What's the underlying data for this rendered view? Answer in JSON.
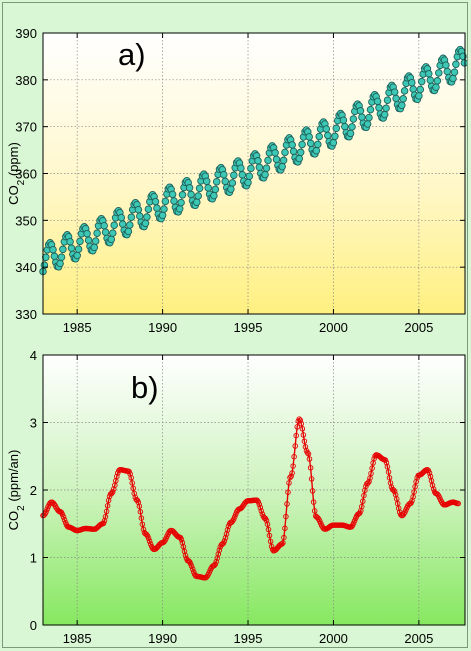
{
  "colors": {
    "page_bg": "#d9f7d4",
    "panel_a_gradient": [
      "#ffffff",
      "#fff7c8",
      "#fff080"
    ],
    "panel_b_gradient": [
      "#ffffff",
      "#c9f2b8",
      "#86e860"
    ],
    "series_a_fill": "#3cc8b4",
    "series_a_edge": "#1f5f5a",
    "series_b_color": "#e60000",
    "grid": "#888888"
  },
  "chart_data": [
    {
      "type": "scatter",
      "panel_label": "a)",
      "ylabel_main": "CO",
      "ylabel_sub": "2",
      "ylabel_rest": " (ppm)",
      "xlim": [
        1983.0,
        2007.7
      ],
      "ylim": [
        330,
        390
      ],
      "xticks": [
        1985,
        1990,
        1995,
        2000,
        2005
      ],
      "yticks": [
        330,
        340,
        350,
        360,
        370,
        380,
        390
      ],
      "grid": true,
      "series": [
        {
          "marker": "circle",
          "x_start": 1983.0,
          "x_end": 2007.7,
          "sampling": "monthly",
          "trend_anchors": {
            "x": [
              1983,
              1990,
              1995,
              2000,
              2005,
              2007.7
            ],
            "y": [
              341.5,
              353.5,
              360.5,
              369.0,
              379.0,
              384.0
            ]
          },
          "seasonal_amplitude_ppm": 3.0
        }
      ]
    },
    {
      "type": "line",
      "panel_label": "b)",
      "ylabel_main": "CO",
      "ylabel_sub": "2",
      "ylabel_rest": " (ppm/an)",
      "xlim": [
        1983.0,
        2007.7
      ],
      "ylim": [
        0,
        4
      ],
      "xticks": [
        1985,
        1990,
        1995,
        2000,
        2005
      ],
      "yticks": [
        0,
        1,
        2,
        3,
        4
      ],
      "grid": true,
      "series": [
        {
          "marker": "circle-line",
          "x": [
            1983.0,
            1983.5,
            1984.0,
            1984.5,
            1985.0,
            1985.5,
            1986.0,
            1986.5,
            1987.0,
            1987.5,
            1988.0,
            1988.5,
            1989.0,
            1989.5,
            1990.0,
            1990.5,
            1991.0,
            1991.5,
            1992.0,
            1992.5,
            1993.0,
            1993.5,
            1994.0,
            1994.5,
            1995.0,
            1995.5,
            1996.0,
            1996.5,
            1997.0,
            1997.5,
            1998.0,
            1998.5,
            1999.0,
            1999.5,
            2000.0,
            2000.5,
            2001.0,
            2001.5,
            2002.0,
            2002.5,
            2003.0,
            2003.5,
            2004.0,
            2004.5,
            2005.0,
            2005.5,
            2006.0,
            2006.5,
            2007.0,
            2007.3
          ],
          "y": [
            1.62,
            1.82,
            1.68,
            1.45,
            1.4,
            1.43,
            1.42,
            1.5,
            1.95,
            2.3,
            2.28,
            1.85,
            1.35,
            1.12,
            1.22,
            1.4,
            1.3,
            0.95,
            0.72,
            0.7,
            0.88,
            1.2,
            1.52,
            1.72,
            1.84,
            1.85,
            1.58,
            1.1,
            1.2,
            2.2,
            3.05,
            2.55,
            1.6,
            1.42,
            1.48,
            1.48,
            1.45,
            1.65,
            2.1,
            2.52,
            2.45,
            2.0,
            1.62,
            1.8,
            2.22,
            2.3,
            1.95,
            1.78,
            1.82,
            1.8
          ]
        }
      ]
    }
  ]
}
